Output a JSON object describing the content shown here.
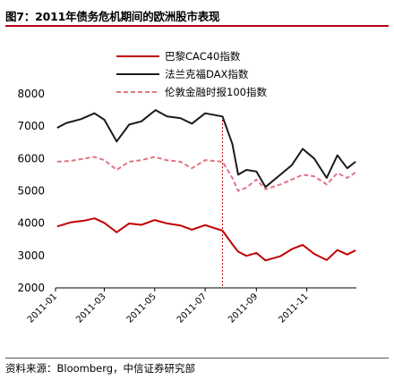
{
  "header": {
    "title": "图7：2011年债务危机期间的欧洲股市表现"
  },
  "footer": {
    "source": "资料来源：Bloomberg，中信证券研究部"
  },
  "chart_data": {
    "type": "line",
    "title": "图7：2011年债务危机期间的欧洲股市表现",
    "xlabel": "",
    "ylabel": "",
    "ylim": [
      2000,
      8000
    ],
    "y_ticks": [
      2000,
      3000,
      4000,
      5000,
      6000,
      7000,
      8000
    ],
    "x_range": [
      "2011-01-01",
      "2011-12-31"
    ],
    "x_ticks": [
      "2011-01",
      "2011-03",
      "2011-05",
      "2011-07",
      "2011-09",
      "2011-11"
    ],
    "annotations": [
      {
        "type": "vertical-dashed-line",
        "x": "2011-07-22"
      }
    ],
    "legend_position": "top-center",
    "grid": false,
    "colors": {
      "cac40": "#c00000",
      "dax": "#1a1a1a",
      "ftse100": "#e07585",
      "marker_line": "#d00000",
      "title_rule": "#b2000f"
    },
    "series": [
      {
        "name": "巴黎CAC40指数",
        "key": "cac40",
        "style": "solid",
        "points": [
          [
            "2011-01-03",
            3900
          ],
          [
            "2011-01-20",
            4030
          ],
          [
            "2011-02-05",
            4080
          ],
          [
            "2011-02-17",
            4150
          ],
          [
            "2011-03-01",
            4010
          ],
          [
            "2011-03-16",
            3720
          ],
          [
            "2011-03-31",
            3990
          ],
          [
            "2011-04-15",
            3950
          ],
          [
            "2011-05-01",
            4100
          ],
          [
            "2011-05-15",
            4000
          ],
          [
            "2011-06-01",
            3930
          ],
          [
            "2011-06-15",
            3800
          ],
          [
            "2011-07-01",
            3940
          ],
          [
            "2011-07-22",
            3770
          ],
          [
            "2011-08-03",
            3350
          ],
          [
            "2011-08-10",
            3120
          ],
          [
            "2011-08-20",
            2990
          ],
          [
            "2011-09-01",
            3080
          ],
          [
            "2011-09-12",
            2850
          ],
          [
            "2011-09-30",
            2980
          ],
          [
            "2011-10-14",
            3200
          ],
          [
            "2011-10-27",
            3330
          ],
          [
            "2011-11-10",
            3050
          ],
          [
            "2011-11-25",
            2860
          ],
          [
            "2011-12-08",
            3170
          ],
          [
            "2011-12-20",
            3030
          ],
          [
            "2011-12-30",
            3160
          ]
        ]
      },
      {
        "name": "法兰克福DAX指数",
        "key": "dax",
        "style": "solid",
        "points": [
          [
            "2011-01-03",
            6950
          ],
          [
            "2011-01-14",
            7100
          ],
          [
            "2011-02-01",
            7220
          ],
          [
            "2011-02-17",
            7400
          ],
          [
            "2011-03-01",
            7200
          ],
          [
            "2011-03-16",
            6530
          ],
          [
            "2011-03-31",
            7050
          ],
          [
            "2011-04-15",
            7150
          ],
          [
            "2011-05-02",
            7500
          ],
          [
            "2011-05-16",
            7300
          ],
          [
            "2011-06-01",
            7250
          ],
          [
            "2011-06-15",
            7080
          ],
          [
            "2011-07-01",
            7400
          ],
          [
            "2011-07-22",
            7300
          ],
          [
            "2011-08-03",
            6450
          ],
          [
            "2011-08-10",
            5500
          ],
          [
            "2011-08-20",
            5650
          ],
          [
            "2011-09-01",
            5600
          ],
          [
            "2011-09-12",
            5120
          ],
          [
            "2011-09-30",
            5500
          ],
          [
            "2011-10-14",
            5800
          ],
          [
            "2011-10-27",
            6300
          ],
          [
            "2011-11-10",
            6000
          ],
          [
            "2011-11-25",
            5400
          ],
          [
            "2011-12-08",
            6100
          ],
          [
            "2011-12-20",
            5700
          ],
          [
            "2011-12-30",
            5900
          ]
        ]
      },
      {
        "name": "伦敦金融时报100指数",
        "key": "ftse100",
        "style": "dashed",
        "points": [
          [
            "2011-01-03",
            5900
          ],
          [
            "2011-01-20",
            5930
          ],
          [
            "2011-02-05",
            6000
          ],
          [
            "2011-02-17",
            6050
          ],
          [
            "2011-03-01",
            5950
          ],
          [
            "2011-03-16",
            5650
          ],
          [
            "2011-03-31",
            5900
          ],
          [
            "2011-04-15",
            5950
          ],
          [
            "2011-05-01",
            6050
          ],
          [
            "2011-05-15",
            5950
          ],
          [
            "2011-06-01",
            5900
          ],
          [
            "2011-06-15",
            5700
          ],
          [
            "2011-07-01",
            5950
          ],
          [
            "2011-07-22",
            5900
          ],
          [
            "2011-08-03",
            5400
          ],
          [
            "2011-08-10",
            5000
          ],
          [
            "2011-08-20",
            5100
          ],
          [
            "2011-09-01",
            5350
          ],
          [
            "2011-09-12",
            5050
          ],
          [
            "2011-09-30",
            5200
          ],
          [
            "2011-10-14",
            5350
          ],
          [
            "2011-10-27",
            5500
          ],
          [
            "2011-11-10",
            5450
          ],
          [
            "2011-11-25",
            5200
          ],
          [
            "2011-12-08",
            5550
          ],
          [
            "2011-12-20",
            5400
          ],
          [
            "2011-12-30",
            5570
          ]
        ]
      }
    ]
  }
}
